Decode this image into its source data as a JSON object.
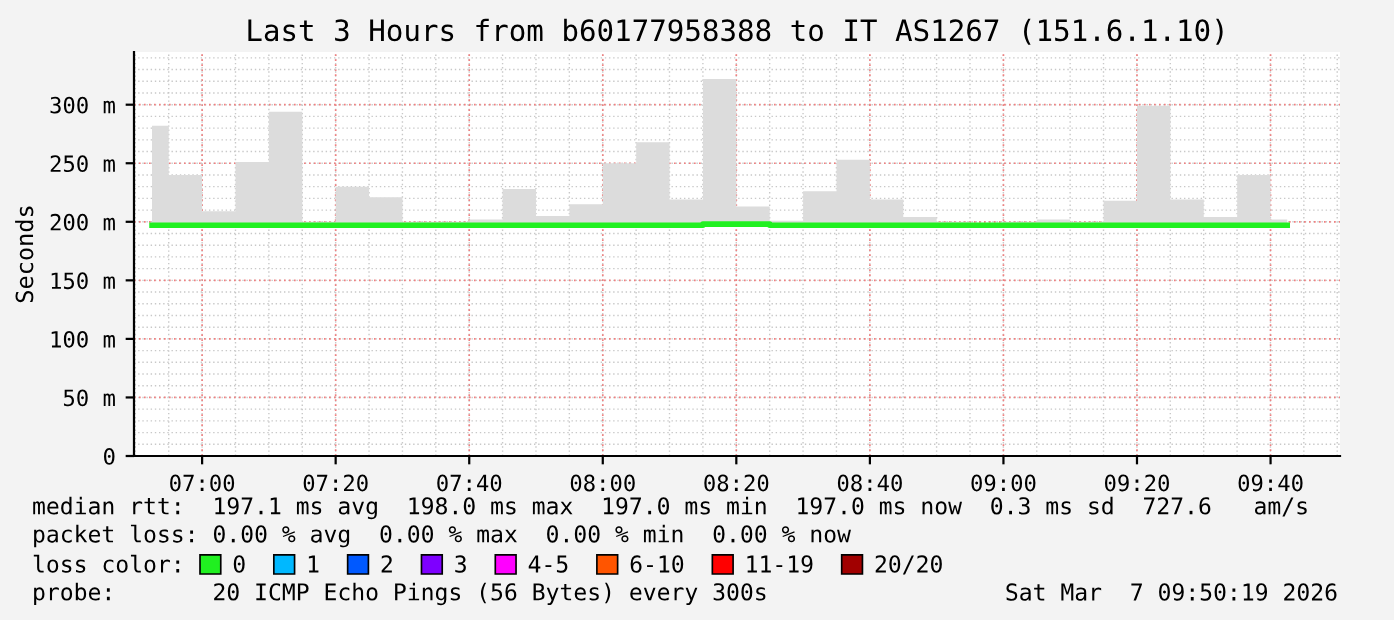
{
  "chart_data": {
    "type": "step",
    "title": "Last 3 Hours from b60177958388 to IT AS1267 (151.6.1.10)",
    "ylabel": "Seconds",
    "x": [
      6.875,
      6.9583,
      7.0417,
      7.125,
      7.2083,
      7.2917,
      7.375,
      7.4583,
      7.5417,
      7.625,
      7.7083,
      7.7917,
      7.875,
      7.9583,
      8.0417,
      8.125,
      8.2083,
      8.2917,
      8.375,
      8.4583,
      8.5417,
      8.625,
      8.7083,
      8.7917,
      8.875,
      8.9583,
      9.0417,
      9.125,
      9.2083,
      9.2917,
      9.375,
      9.4583,
      9.5417,
      9.625,
      9.7083
    ],
    "series": [
      {
        "name": "0",
        "color": "#20f020",
        "values": [
          197,
          197,
          197,
          197,
          197,
          197,
          197,
          197,
          197,
          197,
          197,
          197,
          197,
          197,
          197,
          197,
          197,
          198,
          198,
          197,
          197,
          197,
          197,
          197,
          197,
          197,
          197,
          197,
          197,
          197,
          197,
          197,
          197,
          197,
          197
        ],
        "lower": [
          196,
          196,
          196,
          196,
          196,
          196,
          196,
          196,
          196,
          196,
          196,
          196,
          196,
          196,
          196,
          196,
          196,
          196,
          196,
          196,
          196,
          196,
          196,
          196,
          196,
          196,
          196,
          196,
          196,
          196,
          196,
          196,
          196,
          196,
          196
        ],
        "upper": [
          282,
          240,
          209,
          251,
          294,
          200,
          230,
          221,
          200,
          200,
          202,
          228,
          205,
          215,
          250,
          268,
          219,
          322,
          213,
          201,
          226,
          253,
          219,
          204,
          200,
          199,
          200,
          202,
          200,
          218,
          299,
          219,
          204,
          240,
          202
        ]
      },
      {
        "name": "1",
        "color": "#00b8ff",
        "values": [
          null,
          null,
          null,
          null,
          null,
          null,
          null,
          null,
          null,
          null,
          null,
          null,
          null,
          null,
          null,
          null,
          null,
          null,
          null,
          null,
          null,
          null,
          null,
          null,
          null,
          null,
          null,
          null,
          null,
          null,
          null,
          null,
          null,
          null,
          null
        ]
      },
      {
        "name": "2",
        "color": "#0059ff",
        "values": [
          null,
          null,
          null,
          null,
          null,
          null,
          null,
          null,
          null,
          null,
          null,
          null,
          null,
          null,
          null,
          null,
          null,
          null,
          null,
          null,
          null,
          null,
          null,
          null,
          null,
          null,
          null,
          null,
          null,
          null,
          null,
          null,
          null,
          null,
          null
        ]
      },
      {
        "name": "3",
        "color": "#7e00ff",
        "values": [
          null,
          null,
          null,
          null,
          null,
          null,
          null,
          null,
          null,
          null,
          null,
          null,
          null,
          null,
          null,
          null,
          null,
          null,
          null,
          null,
          null,
          null,
          null,
          null,
          null,
          null,
          null,
          null,
          null,
          null,
          null,
          null,
          null,
          null,
          null
        ]
      },
      {
        "name": "4-5",
        "color": "#ff00ff",
        "values": [
          null,
          null,
          null,
          null,
          null,
          null,
          null,
          null,
          null,
          null,
          null,
          null,
          null,
          null,
          null,
          null,
          null,
          null,
          null,
          null,
          null,
          null,
          null,
          null,
          null,
          null,
          null,
          null,
          null,
          null,
          null,
          null,
          null,
          null,
          null
        ]
      },
      {
        "name": "6-10",
        "color": "#ff5500",
        "values": [
          null,
          null,
          null,
          null,
          null,
          null,
          null,
          null,
          null,
          null,
          null,
          null,
          null,
          null,
          null,
          null,
          null,
          null,
          null,
          null,
          null,
          null,
          null,
          null,
          null,
          null,
          null,
          null,
          null,
          null,
          null,
          null,
          null,
          null,
          null
        ]
      },
      {
        "name": "11-19",
        "color": "#ff0000",
        "values": [
          null,
          null,
          null,
          null,
          null,
          null,
          null,
          null,
          null,
          null,
          null,
          null,
          null,
          null,
          null,
          null,
          null,
          null,
          null,
          null,
          null,
          null,
          null,
          null,
          null,
          null,
          null,
          null,
          null,
          null,
          null,
          null,
          null,
          null,
          null
        ]
      },
      {
        "name": "20/20",
        "color": "#a10000",
        "values": [
          null,
          null,
          null,
          null,
          null,
          null,
          null,
          null,
          null,
          null,
          null,
          null,
          null,
          null,
          null,
          null,
          null,
          null,
          null,
          null,
          null,
          null,
          null,
          null,
          null,
          null,
          null,
          null,
          null,
          null,
          null,
          null,
          null,
          null,
          null
        ]
      }
    ],
    "legend_title": "loss color:",
    "legend": "bottom",
    "xlim": [
      6.83,
      9.84
    ],
    "xticks": [
      {
        "value": 7.0,
        "label": "07:00"
      },
      {
        "value": 7.3333,
        "label": "07:20"
      },
      {
        "value": 7.6667,
        "label": "07:40"
      },
      {
        "value": 8.0,
        "label": "08:00"
      },
      {
        "value": 8.3333,
        "label": "08:20"
      },
      {
        "value": 8.6667,
        "label": "08:40"
      },
      {
        "value": 9.0,
        "label": "09:00"
      },
      {
        "value": 9.3333,
        "label": "09:20"
      },
      {
        "value": 9.6667,
        "label": "09:40"
      }
    ],
    "ylim": [
      0,
      345
    ],
    "yticks": [
      0,
      {
        "value": 50,
        "label": "50 m"
      },
      {
        "value": 100,
        "label": "100 m"
      },
      {
        "value": 150,
        "label": "150 m"
      },
      {
        "value": 200,
        "label": "200 m"
      },
      {
        "value": 250,
        "label": "250 m"
      },
      {
        "value": 300,
        "label": "300 m"
      }
    ],
    "grid": true,
    "annotations": [
      "median rtt:  197.1 ms avg  198.0 ms max  197.0 ms min  197.0 ms now  0.3 ms sd  727.6   am/s",
      "packet loss: 0.00 % avg  0.00 % max  0.00 % min  0.00 % now",
      "probe:       20 ICMP Echo Pings (56 Bytes) every 300s",
      "Sat Mar  7 09:50:19 2026"
    ]
  }
}
